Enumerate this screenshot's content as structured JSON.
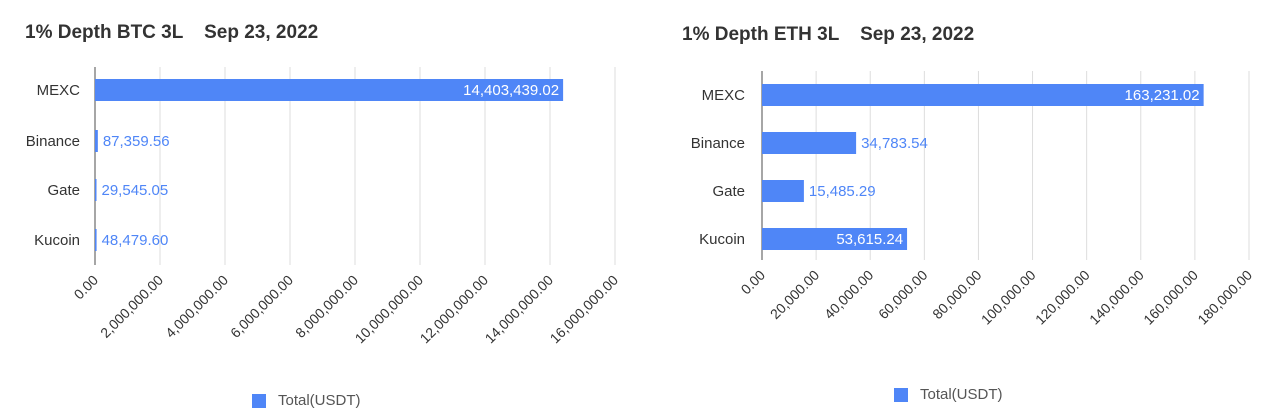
{
  "colors": {
    "bar": "#4f86f7",
    "axis": "#888888",
    "grid": "#dddddd",
    "label_dark": "#333333"
  },
  "chart_data": [
    {
      "type": "bar",
      "orientation": "horizontal",
      "title": "1% Depth BTC 3L    Sep 23, 2022",
      "categories": [
        "MEXC",
        "Binance",
        "Gate",
        "Kucoin"
      ],
      "series": [
        {
          "name": "Total(USDT)",
          "values": [
            14403439.02,
            87359.56,
            29545.05,
            48479.6
          ]
        }
      ],
      "data_labels": [
        "14,403,439.02",
        "87,359.56",
        "29,545.05",
        "48,479.60"
      ],
      "xlim": [
        0,
        16000000
      ],
      "xticks": [
        "0.00",
        "2,000,000.00",
        "4,000,000.00",
        "6,000,000.00",
        "8,000,000.00",
        "10,000,000.00",
        "12,000,000.00",
        "14,000,000.00",
        "16,000,000.00"
      ],
      "grid": true,
      "legend": "bottom"
    },
    {
      "type": "bar",
      "orientation": "horizontal",
      "title": "1% Depth ETH 3L    Sep 23, 2022",
      "categories": [
        "MEXC",
        "Binance",
        "Gate",
        "Kucoin"
      ],
      "series": [
        {
          "name": "Total(USDT)",
          "values": [
            163231.02,
            34783.54,
            15485.29,
            53615.24
          ]
        }
      ],
      "data_labels": [
        "163,231.02",
        "34,783.54",
        "15,485.29",
        "53,615.24"
      ],
      "xlim": [
        0,
        180000
      ],
      "xticks": [
        "0.00",
        "20,000.00",
        "40,000.00",
        "60,000.00",
        "80,000.00",
        "100,000.00",
        "120,000.00",
        "140,000.00",
        "160,000.00",
        "180,000.00"
      ],
      "grid": true,
      "legend": "bottom"
    }
  ]
}
